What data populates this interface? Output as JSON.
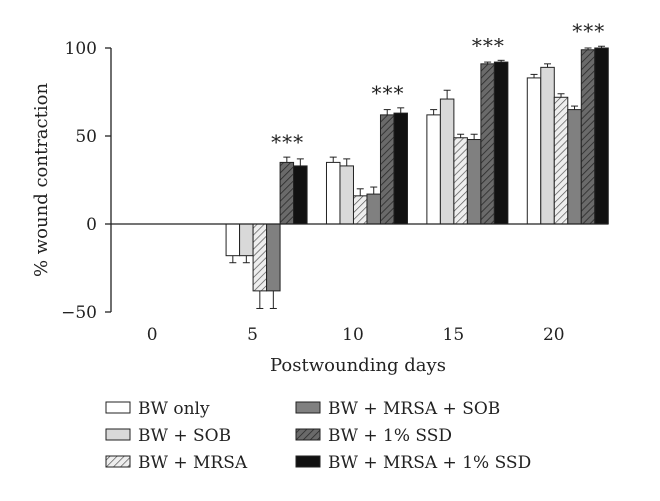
{
  "chart_data": {
    "type": "bar",
    "title": "",
    "xlabel": "Postwounding days",
    "ylabel": "% wound contraction",
    "categories": [
      "0",
      "5",
      "10",
      "15",
      "20"
    ],
    "ylim": [
      -50,
      100
    ],
    "yticks": [
      "-50",
      "0",
      "50",
      "100"
    ],
    "grid": false,
    "legend_position": "bottom",
    "series": [
      {
        "name": "BW only",
        "values": [
          0,
          -18,
          35,
          62,
          83
        ],
        "errors": [
          0,
          4,
          3,
          3,
          2
        ],
        "fill": "#ffffff",
        "pattern": "solid"
      },
      {
        "name": "BW + SOB",
        "values": [
          0,
          -18,
          33,
          71,
          89
        ],
        "errors": [
          0,
          4,
          4,
          5,
          2
        ],
        "fill": "#d9d9d9",
        "pattern": "solid"
      },
      {
        "name": "BW + MRSA",
        "values": [
          0,
          -38,
          16,
          49,
          72
        ],
        "errors": [
          0,
          10,
          4,
          2,
          2
        ],
        "fill": "#e6e6e6",
        "pattern": "hatch-light"
      },
      {
        "name": "BW + MRSA + SOB",
        "values": [
          0,
          -38,
          17,
          48,
          65
        ],
        "errors": [
          0,
          10,
          4,
          3,
          2
        ],
        "fill": "#808080",
        "pattern": "solid"
      },
      {
        "name": "BW + 1% SSD",
        "values": [
          0,
          35,
          62,
          91,
          99
        ],
        "errors": [
          0,
          3,
          3,
          1,
          1
        ],
        "fill": "#4d4d4d",
        "pattern": "hatch-dark"
      },
      {
        "name": "BW + MRSA + 1% SSD",
        "values": [
          0,
          33,
          63,
          92,
          100
        ],
        "errors": [
          0,
          4,
          3,
          1,
          1
        ],
        "fill": "#111111",
        "pattern": "solid"
      }
    ],
    "annotations": [
      {
        "category": "5",
        "text": "***"
      },
      {
        "category": "10",
        "text": "***"
      },
      {
        "category": "15",
        "text": "***"
      },
      {
        "category": "20",
        "text": "***"
      }
    ]
  }
}
